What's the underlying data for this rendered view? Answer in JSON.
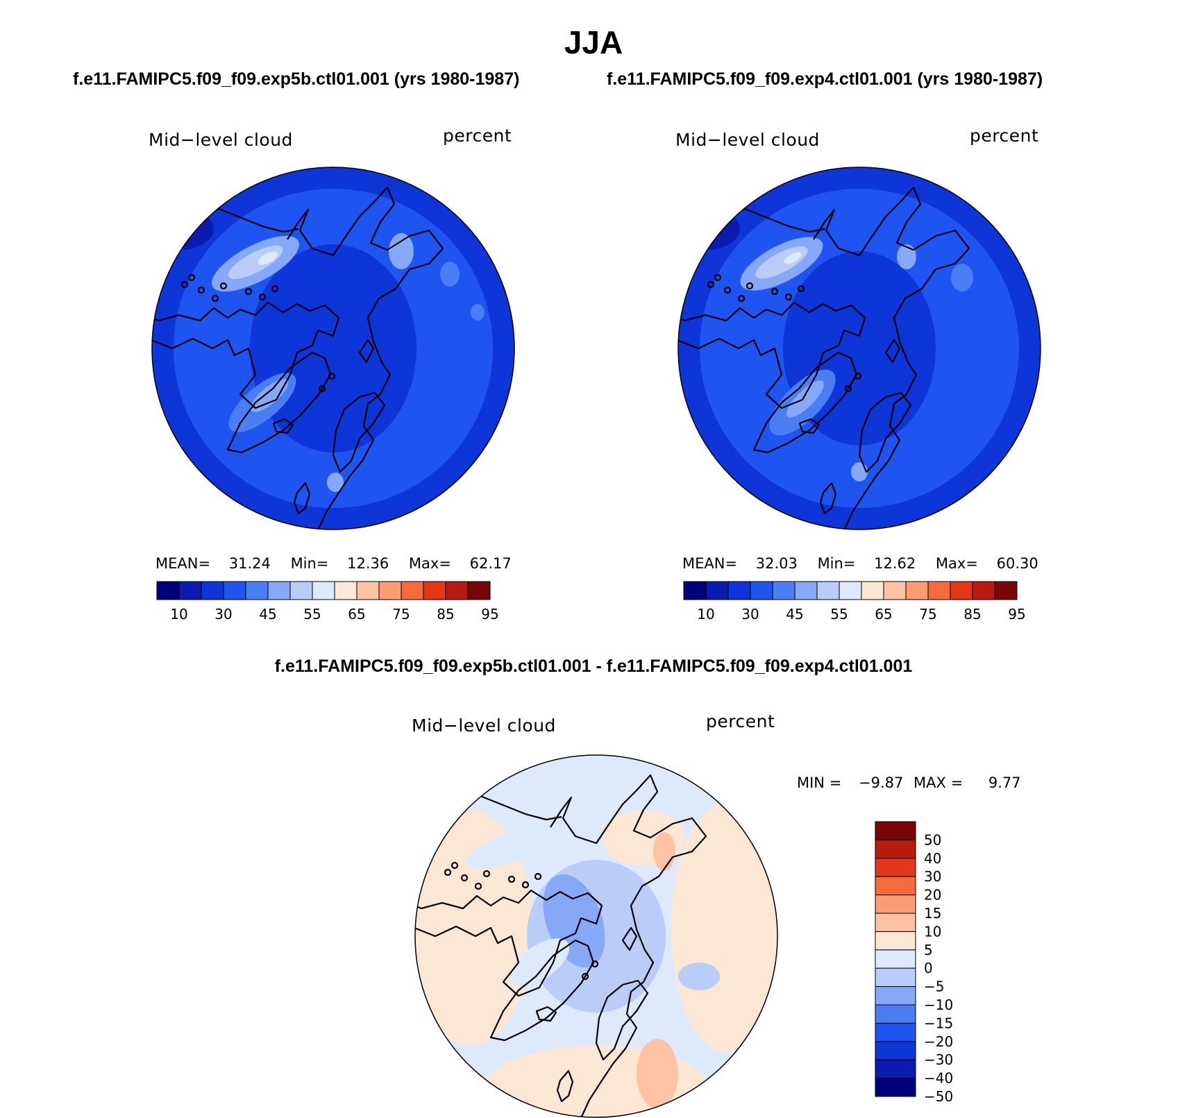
{
  "title": "JJA",
  "subtitle_left": "f.e11.FAMIPC5.f09_f09.exp5b.ctl01.001 (yrs 1980-1987)",
  "subtitle_right": "f.e11.FAMIPC5.f09_f09.exp4.ctl01.001 (yrs 1980-1987)",
  "diff_title": "f.e11.FAMIPC5.f09_f09.exp5b.ctl01.001 - f.e11.FAMIPC5.f09_f09.exp4.ctl01.001",
  "chart_data": [
    {
      "type": "polar-contour-map",
      "variable": "Mid−level cloud",
      "units": "percent",
      "stats": {
        "mean_label": "MEAN=",
        "mean": "31.24",
        "min_label": "Min=",
        "min": "12.36",
        "max_label": "Max=",
        "max": "62.17"
      },
      "colorbar_ticks": [
        "10",
        "30",
        "45",
        "55",
        "65",
        "75",
        "85",
        "95"
      ]
    },
    {
      "type": "polar-contour-map",
      "variable": "Mid−level cloud",
      "units": "percent",
      "stats": {
        "mean_label": "MEAN=",
        "mean": "32.03",
        "min_label": "Min=",
        "min": "12.62",
        "max_label": "Max=",
        "max": "60.30"
      },
      "colorbar_ticks": [
        "10",
        "30",
        "45",
        "55",
        "65",
        "75",
        "85",
        "95"
      ]
    },
    {
      "type": "polar-contour-map",
      "variable": "Mid−level cloud",
      "units": "percent",
      "stats": {
        "min_label": "MIN =",
        "min": "−9.87",
        "max_label": "MAX =",
        "max": "9.77"
      },
      "colorbar_ticks": [
        "50",
        "40",
        "30",
        "20",
        "15",
        "10",
        "5",
        "0",
        "−5",
        "−10",
        "−15",
        "−20",
        "−30",
        "−40",
        "−50"
      ]
    }
  ],
  "colors": {
    "scale": [
      "#00007f",
      "#0a1bb0",
      "#0d35d8",
      "#1e55f0",
      "#4a7ef5",
      "#86a9f7",
      "#b9cdf8",
      "#ddeafb",
      "#fce6d4",
      "#fdc3a3",
      "#fb9d74",
      "#f56c3c",
      "#e3371a",
      "#b81b0f",
      "#7a0507"
    ],
    "diff_scale": [
      "#7a0507",
      "#b81b0f",
      "#e3371a",
      "#f56c3c",
      "#fb9d74",
      "#fdc3a3",
      "#fce6d4",
      "#ddeafb",
      "#b9cdf8",
      "#86a9f7",
      "#4a7ef5",
      "#1e55f0",
      "#0d35d8",
      "#0a1bb0",
      "#00007f"
    ]
  }
}
